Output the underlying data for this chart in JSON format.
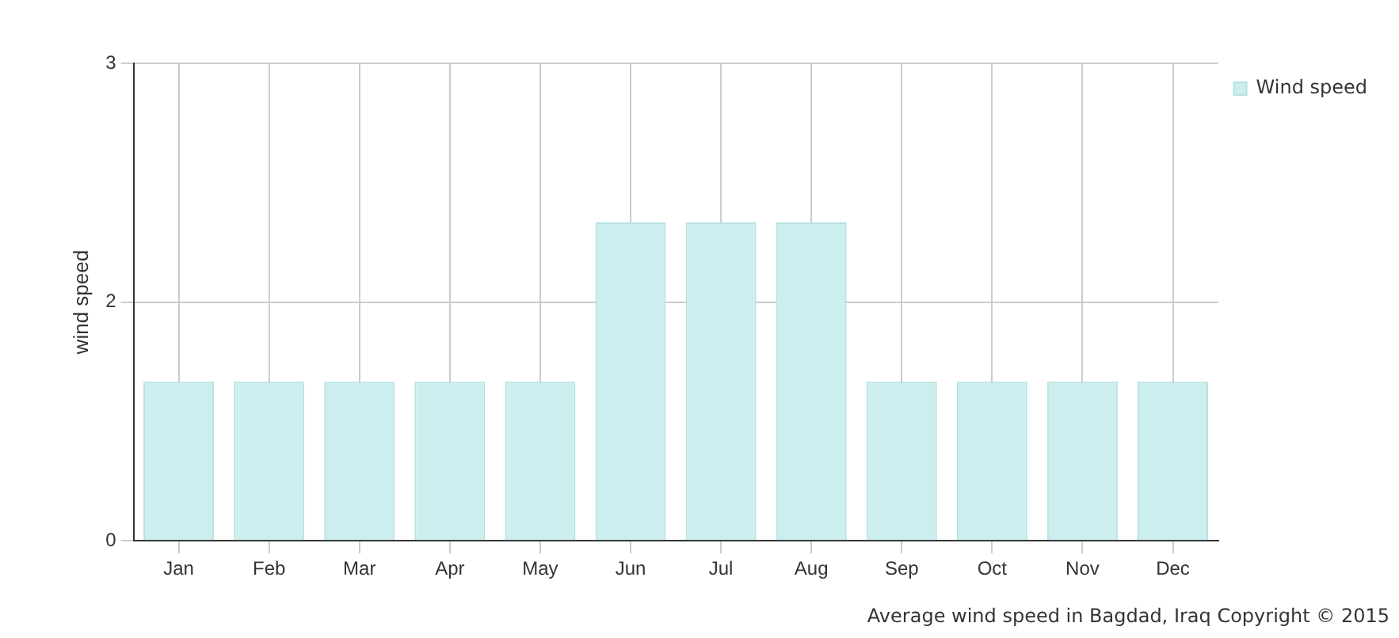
{
  "chart_data": {
    "type": "bar",
    "ylabel": "wind speed",
    "categories": [
      "Jan",
      "Feb",
      "Mar",
      "Apr",
      "May",
      "Jun",
      "Jul",
      "Aug",
      "Sep",
      "Oct",
      "Nov",
      "Dec"
    ],
    "series": [
      {
        "name": "Wind speed",
        "color": "#cdeeee",
        "values": [
          1,
          1,
          1,
          1,
          1,
          2,
          2,
          2,
          1,
          1,
          1,
          1
        ]
      }
    ],
    "ylim": [
      0,
      3
    ],
    "yticks": [
      0,
      {
        "value": 1.5,
        "label": "2"
      },
      3
    ],
    "grid": true,
    "legend": "top right",
    "annotations": [
      "Average wind speed in Bagdad, Iraq   Copyright © 2015"
    ]
  }
}
